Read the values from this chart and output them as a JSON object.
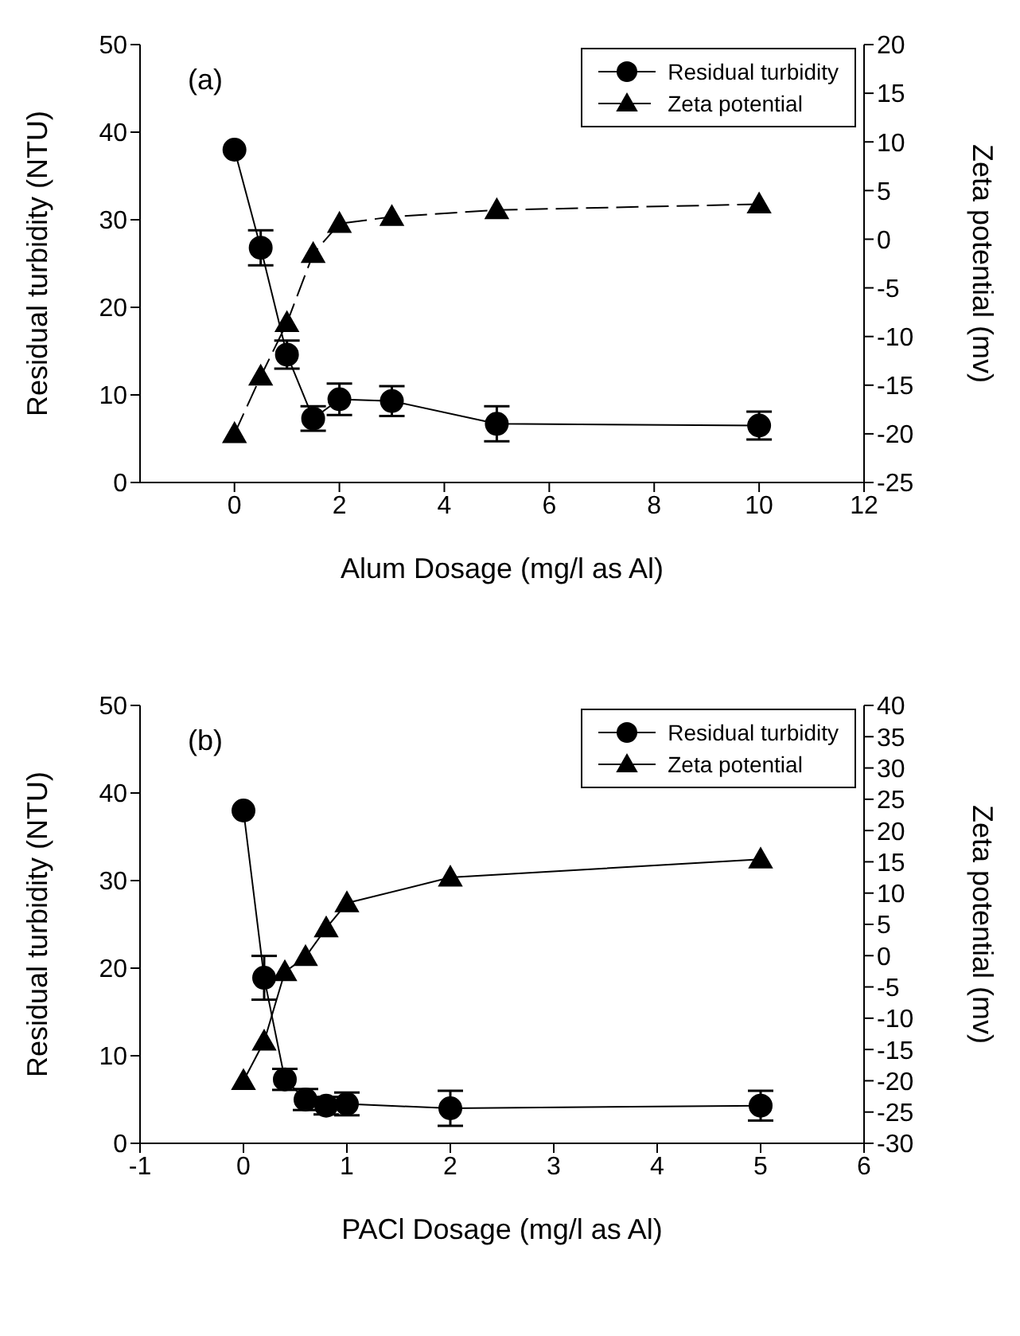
{
  "chart_data": [
    {
      "type": "line",
      "annotations": [
        "(a)"
      ],
      "xlabel": "Alum Dosage (mg/l as Al)",
      "ylabel": "Residual turbidity (NTU)",
      "y2label": "Zeta potential (mv)",
      "x": [
        0,
        0.5,
        1,
        1.5,
        2,
        3,
        5,
        10
      ],
      "xlim": [
        -1.8,
        12
      ],
      "xticks": [
        0,
        2,
        4,
        6,
        8,
        10,
        12
      ],
      "ylim": [
        0,
        50
      ],
      "yticks": [
        0,
        10,
        20,
        30,
        40,
        50
      ],
      "y2lim": [
        -25,
        20
      ],
      "y2ticks": [
        -25,
        -20,
        -15,
        -10,
        -5,
        0,
        5,
        10,
        15,
        20
      ],
      "legend": "top right",
      "grid": false,
      "series": [
        {
          "name": "Residual turbidity",
          "color": "#000000",
          "marker": "circle",
          "line_style": "solid",
          "values": [
            38,
            26.8,
            14.6,
            7.3,
            9.5,
            9.3,
            6.7,
            6.5
          ],
          "errors": [
            null,
            2,
            1.6,
            1.4,
            1.8,
            1.7,
            2,
            1.6
          ]
        },
        {
          "name": "Zeta potential",
          "color": "#000000",
          "marker": "triangle",
          "line_style": "dashed",
          "axis": "y2",
          "values": [
            -20,
            -14.1,
            -8.6,
            -1.5,
            1.6,
            2.3,
            3.0,
            3.6
          ]
        }
      ]
    },
    {
      "type": "line",
      "annotations": [
        "(b)"
      ],
      "xlabel": "PACl Dosage (mg/l as Al)",
      "ylabel": "Residual turbidity (NTU)",
      "y2label": "Zeta potential (mv)",
      "x": [
        0,
        0.2,
        0.4,
        0.6,
        0.8,
        1,
        2,
        5
      ],
      "xlim": [
        -1,
        6
      ],
      "xticks": [
        -1,
        0,
        1,
        2,
        3,
        4,
        5,
        6
      ],
      "ylim": [
        0,
        50
      ],
      "yticks": [
        0,
        10,
        20,
        30,
        40,
        50
      ],
      "y2lim": [
        -30,
        40
      ],
      "y2ticks": [
        -30,
        -25,
        -20,
        -15,
        -10,
        -5,
        0,
        5,
        10,
        15,
        20,
        25,
        30,
        35,
        40
      ],
      "legend": "top right",
      "grid": false,
      "series": [
        {
          "name": "Residual turbidity",
          "color": "#000000",
          "marker": "circle",
          "line_style": "solid",
          "values": [
            38,
            18.9,
            7.3,
            5,
            4.3,
            4.5,
            4,
            4.3
          ],
          "errors": [
            null,
            2.5,
            1.2,
            1.2,
            1,
            1.3,
            2,
            1.7
          ]
        },
        {
          "name": "Zeta potential",
          "color": "#000000",
          "marker": "triangle",
          "line_style": "solid",
          "axis": "y2",
          "values": [
            -20,
            -13.7,
            -2.6,
            -0.2,
            4.4,
            8.4,
            12.5,
            15.4
          ]
        }
      ]
    }
  ]
}
